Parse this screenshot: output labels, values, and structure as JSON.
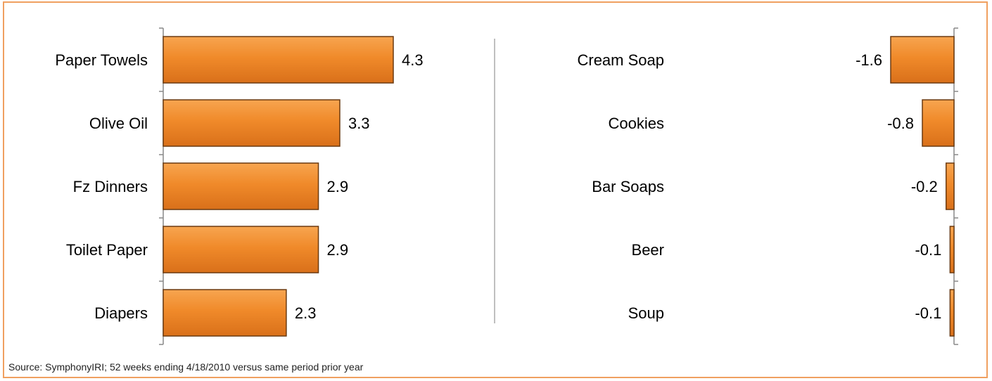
{
  "source_note": "Source:  SymphonyIRI; 52 weeks ending 4/18/2010 versus same period prior year",
  "colors": {
    "bar_fill": "#f08a2a",
    "bar_fill_light": "#f7a550",
    "bar_fill_dark": "#d9701a",
    "bar_edge": "#6b3a10",
    "frame_border": "#f0a060",
    "axis": "#888888",
    "divider": "#aaaaaa"
  },
  "chart_data": [
    {
      "type": "bar",
      "orientation": "horizontal",
      "categories": [
        "Paper Towels",
        "Olive Oil",
        "Fz Dinners",
        "Toilet Paper",
        "Diapers"
      ],
      "values": [
        4.3,
        3.3,
        2.9,
        2.9,
        2.3
      ],
      "value_labels": [
        "4.3",
        "3.3",
        "2.9",
        "2.9",
        "2.3"
      ],
      "xlim": [
        0,
        6
      ],
      "grid": false,
      "legend": "none"
    },
    {
      "type": "bar",
      "orientation": "horizontal",
      "categories": [
        "Cream Soap",
        "Cookies",
        "Bar Soaps",
        "Beer",
        "Soup"
      ],
      "values": [
        -1.6,
        -0.8,
        -0.2,
        -0.1,
        -0.1
      ],
      "value_labels": [
        "-1.6",
        "-0.8",
        "-0.2",
        "-0.1",
        "-0.1"
      ],
      "xlim": [
        -6,
        0
      ],
      "grid": false,
      "legend": "none"
    }
  ]
}
